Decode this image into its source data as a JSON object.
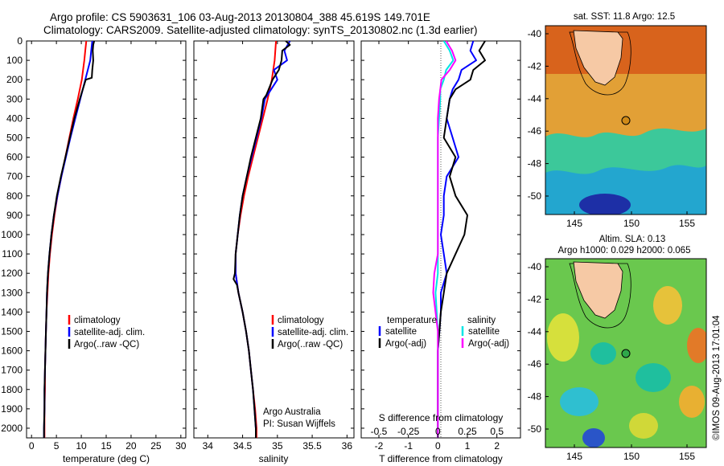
{
  "header": {
    "line1": "Argo profile: CS 5903631_106 03-Aug-2013 20130804_388 45.619S 149.701E",
    "line2": "Climatology: CARS2009. Satellite-adjusted climatology: synTS_20130802.nc (1.3d earlier)"
  },
  "colors": {
    "climatology": "#ff0000",
    "satellite": "#0000ff",
    "argo": "#000000",
    "sat_salinity": "#00e5e5",
    "argo_salinity": "#ff00ff",
    "float_marker_sst": "#d08a18",
    "float_marker_sla": "#2fa84a",
    "coast_fill": "#f6c9a5"
  },
  "credit": {
    "org": "Argo Australia",
    "pi": "PI: Susan Wijffels"
  },
  "watermark": "©IMOS 09-Aug-2013 17:01:04",
  "maps": {
    "sst_title": "sat. SST: 11.8 Argo: 12.5",
    "sla_title1": "Altim. SLA: 0.13",
    "sla_title2": "Argo h1000: 0.029 h2000: 0.065",
    "lat_ticks": [
      "-40",
      "-42",
      "-44",
      "-46",
      "-48",
      "-50"
    ],
    "lon_ticks": [
      "145",
      "150",
      "155"
    ]
  },
  "legends": {
    "temp": [
      "climatology",
      "satellite-adj. clim.",
      "Argo(..raw -QC)"
    ],
    "sal": [
      "climatology",
      "satellite-adj. clim.",
      "Argo(..raw -QC)"
    ],
    "diff_temp_head": "temperature",
    "diff_sal_head": "salinity",
    "diff_temp": [
      "satellite",
      "Argo(-adj)"
    ],
    "diff_sal": [
      "satellite",
      "Argo(-adj)"
    ]
  },
  "chart_data": [
    {
      "type": "line",
      "xlabel": "temperature (deg C)",
      "ylabel": "",
      "xlim": [
        -1,
        31
      ],
      "ylim": [
        2050,
        0
      ],
      "x_ticks": [
        0,
        5,
        10,
        15,
        20,
        25,
        30
      ],
      "y_ticks": [
        0,
        100,
        200,
        300,
        400,
        500,
        600,
        700,
        800,
        900,
        1000,
        1100,
        1200,
        1300,
        1400,
        1500,
        1600,
        1700,
        1800,
        1900,
        2000
      ],
      "series": [
        {
          "name": "climatology",
          "depth": [
            0,
            50,
            100,
            200,
            300,
            400,
            500,
            600,
            700,
            800,
            900,
            1000,
            1100,
            1200,
            1300,
            1400,
            1500,
            1600,
            1700,
            1800,
            1900,
            2000,
            2050
          ],
          "values": [
            11.0,
            10.8,
            10.6,
            10.1,
            9.3,
            8.4,
            7.6,
            6.8,
            6.0,
            5.2,
            4.6,
            4.1,
            3.7,
            3.4,
            3.2,
            3.0,
            2.9,
            2.8,
            2.7,
            2.7,
            2.6,
            2.6,
            2.6
          ]
        },
        {
          "name": "satellite-adj. clim.",
          "depth": [
            0,
            50,
            100,
            200,
            300,
            400,
            500,
            600,
            700,
            800,
            900,
            1000,
            1100,
            1200,
            1300,
            1400,
            1500,
            1600,
            1700,
            1800,
            1900,
            2000,
            2050
          ],
          "values": [
            12.2,
            12.0,
            11.8,
            10.8,
            9.8,
            8.8,
            7.8,
            6.9,
            6.0,
            5.2,
            4.5,
            4.0,
            3.6,
            3.3,
            3.1,
            3.0,
            2.9,
            2.8,
            2.7,
            2.6,
            2.6,
            2.5,
            2.5
          ]
        },
        {
          "name": "Argo(..raw -QC)",
          "depth": [
            0,
            20,
            50,
            100,
            150,
            190,
            200,
            300,
            400,
            500,
            600,
            700,
            800,
            900,
            1000,
            1100,
            1200,
            1300,
            1400,
            1500,
            1600,
            1700,
            1800,
            1900,
            2000,
            2050
          ],
          "values": [
            12.6,
            12.4,
            12.3,
            12.4,
            12.2,
            12.1,
            10.9,
            9.7,
            8.6,
            7.7,
            6.8,
            5.9,
            5.1,
            4.5,
            4.0,
            3.6,
            3.3,
            3.1,
            3.0,
            2.9,
            2.8,
            2.7,
            2.6,
            2.6,
            2.5,
            2.5
          ]
        }
      ]
    },
    {
      "type": "line",
      "xlabel": "salinity",
      "ylabel": "",
      "xlim": [
        33.8,
        36.1
      ],
      "ylim": [
        2050,
        0
      ],
      "x_ticks": [
        "34",
        "34.5",
        "35",
        "35.5",
        "36"
      ],
      "series": [
        {
          "name": "climatology",
          "depth": [
            0,
            100,
            200,
            300,
            400,
            500,
            600,
            700,
            800,
            900,
            1000,
            1100,
            1200,
            1300,
            1400,
            1500,
            1600,
            1700,
            1800,
            1900,
            2000,
            2050
          ],
          "values": [
            34.98,
            34.96,
            34.92,
            34.86,
            34.79,
            34.72,
            34.65,
            34.58,
            34.52,
            34.47,
            34.43,
            34.4,
            34.4,
            34.44,
            34.5,
            34.55,
            34.59,
            34.62,
            34.65,
            34.68,
            34.7,
            34.7
          ]
        },
        {
          "name": "satellite-adj. clim.",
          "depth": [
            0,
            50,
            100,
            150,
            200,
            300,
            400,
            500,
            600,
            700,
            800,
            900,
            1000,
            1100,
            1200,
            1300,
            1400,
            1500,
            1600,
            1700,
            1800,
            1900,
            2000,
            2050
          ],
          "values": [
            35.18,
            35.1,
            35.14,
            34.95,
            35.0,
            34.82,
            34.77,
            34.7,
            34.63,
            34.56,
            34.5,
            34.46,
            34.43,
            34.4,
            34.4,
            34.44,
            34.5,
            34.55,
            34.59,
            34.62,
            34.65,
            34.67,
            34.69,
            34.69
          ]
        },
        {
          "name": "Argo(..raw -QC)",
          "depth": [
            0,
            20,
            50,
            100,
            150,
            200,
            280,
            300,
            400,
            500,
            600,
            700,
            800,
            900,
            1000,
            1100,
            1200,
            1230,
            1260,
            1300,
            1400,
            1500,
            1600,
            1700,
            1800,
            1900,
            2000,
            2050
          ],
          "values": [
            35.12,
            35.18,
            35.07,
            35.06,
            35.02,
            34.93,
            34.84,
            34.8,
            34.76,
            34.69,
            34.62,
            34.56,
            34.5,
            34.46,
            34.43,
            34.4,
            34.39,
            34.37,
            34.42,
            34.44,
            34.5,
            34.55,
            34.59,
            34.62,
            34.65,
            34.67,
            34.69,
            34.69
          ]
        }
      ]
    },
    {
      "type": "line",
      "xlabel": "T difference from climatology",
      "xlabel_top": "S difference from climatology",
      "ylabel": "",
      "xlim": [
        -2.6,
        2.8
      ],
      "ylim": [
        2050,
        0
      ],
      "x_ticks": [
        "-2",
        "-1",
        "0",
        "1",
        "2"
      ],
      "x_ticks_top": [
        "-0.5",
        "-0.25",
        "0",
        "0.25",
        "0.5"
      ],
      "series": [
        {
          "name": "temperature satellite",
          "depth": [
            0,
            50,
            100,
            150,
            200,
            250,
            300,
            400,
            500,
            600,
            700,
            800,
            900,
            1000,
            1100,
            1200,
            1300,
            1400,
            1500,
            1600,
            1700,
            1800,
            1900,
            2000,
            2050
          ],
          "values": [
            1.2,
            1.1,
            1.3,
            0.8,
            0.7,
            0.5,
            0.4,
            0.3,
            0.5,
            0.7,
            0.3,
            0.2,
            0.2,
            0.1,
            0.2,
            0.3,
            0.1,
            0.1,
            0.05,
            0.0,
            0.0,
            0.0,
            0.0,
            0.0,
            0.0
          ]
        },
        {
          "name": "temperature Argo(-adj)",
          "depth": [
            0,
            50,
            100,
            150,
            200,
            250,
            300,
            400,
            500,
            600,
            700,
            800,
            900,
            1000,
            1100,
            1200,
            1300,
            1400,
            1500,
            1600,
            1700,
            1800,
            1900,
            2000,
            2050
          ],
          "values": [
            1.6,
            1.4,
            1.6,
            1.2,
            1.1,
            0.6,
            0.4,
            0.3,
            0.2,
            0.6,
            0.4,
            0.6,
            1.0,
            0.9,
            0.6,
            0.3,
            0.2,
            0.1,
            0.05,
            0.0,
            0.0,
            0.0,
            0.0,
            0.0,
            0.0
          ]
        },
        {
          "name": "salinity satellite",
          "depth": [
            0,
            50,
            100,
            150,
            200,
            250,
            300,
            400,
            500,
            600,
            700,
            800,
            900,
            1000,
            1100,
            1200,
            1300,
            1400,
            1500,
            1600,
            1700,
            1800,
            1900,
            2000,
            2050
          ],
          "values": [
            0.05,
            0.1,
            0.13,
            0.07,
            0.05,
            0.02,
            0.02,
            0.01,
            0.0,
            0.0,
            0.0,
            0.0,
            0.0,
            0.0,
            0.0,
            0.0,
            -0.02,
            -0.01,
            0.0,
            0.0,
            0.0,
            0.0,
            0.0,
            0.0,
            0.0
          ]
        },
        {
          "name": "salinity Argo(-adj)",
          "depth": [
            0,
            50,
            100,
            150,
            200,
            250,
            300,
            400,
            500,
            600,
            700,
            800,
            900,
            1000,
            1100,
            1200,
            1300,
            1400,
            1500,
            1600,
            1700,
            1800,
            1900,
            2000,
            2050
          ],
          "values": [
            0.07,
            0.12,
            0.15,
            0.1,
            0.03,
            0.02,
            0.01,
            0.0,
            0.0,
            0.0,
            0.0,
            0.0,
            0.0,
            0.0,
            0.0,
            -0.03,
            -0.04,
            -0.02,
            0.0,
            0.0,
            0.0,
            0.0,
            0.0,
            0.0,
            0.0
          ]
        }
      ]
    }
  ]
}
